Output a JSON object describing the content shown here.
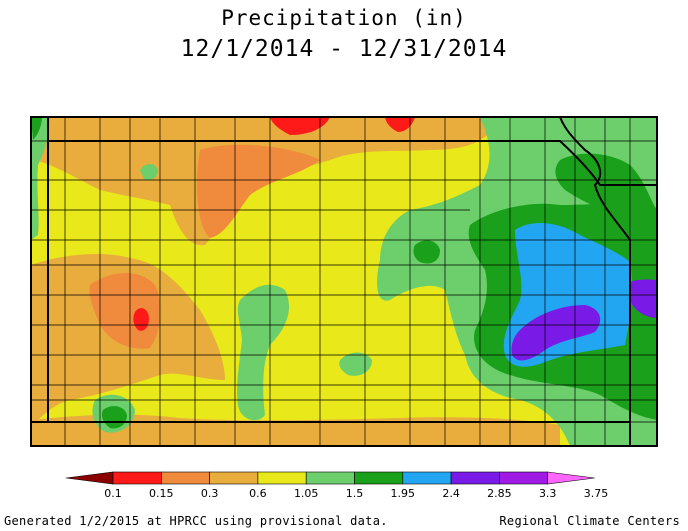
{
  "title": "Precipitation (in)",
  "date_range": "12/1/2014 - 12/31/2014",
  "footer": {
    "generated": "Generated 1/2/2015 at HPRCC using provisional data.",
    "source": "Regional Climate Centers"
  },
  "legend": {
    "bins": [
      {
        "color": "#8b0000"
      },
      {
        "color": "#ff1a1a"
      },
      {
        "color": "#f08a3c"
      },
      {
        "color": "#e8ad3c"
      },
      {
        "color": "#e8e81a"
      },
      {
        "color": "#6ccf6c"
      },
      {
        "color": "#1aa01a"
      },
      {
        "color": "#22a6f2"
      },
      {
        "color": "#7a1ae6"
      },
      {
        "color": "#a01ae6"
      },
      {
        "color": "#ff66ff"
      }
    ],
    "thresholds": [
      "0.1",
      "0.15",
      "0.3",
      "0.6",
      "1.05",
      "1.5",
      "1.95",
      "2.4",
      "2.85",
      "3.3",
      "3.75"
    ]
  },
  "colors": {
    "le_0_1": "#8b0000",
    "r_0_1_0_15": "#ff1a1a",
    "r_0_15_0_3": "#f08a3c",
    "r_0_3_0_6": "#e8ad3c",
    "r_0_6_1_05": "#e8e81a",
    "r_1_05_1_5": "#6ccf6c",
    "r_1_5_1_95": "#1aa01a",
    "r_1_95_2_4": "#22a6f2",
    "r_2_4_2_85": "#7a1ae6",
    "r_2_85_3_3": "#a01ae6",
    "ge_3_75": "#ff66ff"
  }
}
